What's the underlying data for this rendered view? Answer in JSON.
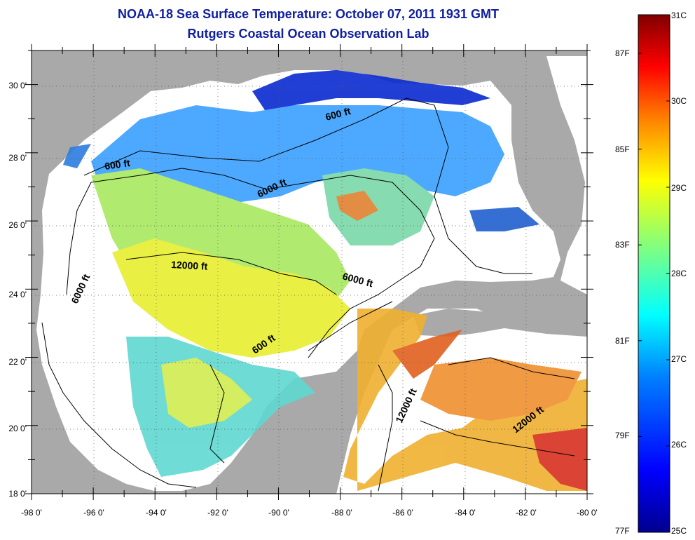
{
  "title": "NOAA-18 Sea Surface Temperature:  October 07, 2011 1931 GMT",
  "subtitle": "Rutgers Coastal Ocean Observation Lab",
  "axes": {
    "lat_labels": [
      "30 0'",
      "28 0'",
      "26 0'",
      "24 0'",
      "22 0'",
      "20 0'",
      "18 0'"
    ],
    "lon_labels": [
      "-98 0'",
      "-96 0'",
      "-94 0'",
      "-92 0'",
      "-90 0'",
      "-88 0'",
      "-86 0'",
      "-84 0'",
      "-82 0'",
      "-80 0'"
    ]
  },
  "colorbar": {
    "fahrenheit_labels": [
      "87F",
      "85F",
      "83F",
      "81F",
      "79F",
      "77F"
    ],
    "celsius_labels": [
      "31C",
      "30C",
      "29C",
      "28C",
      "27C",
      "26C",
      "25C"
    ],
    "range_c": [
      25,
      31
    ],
    "colors": [
      "#00008f",
      "#0000ff",
      "#0080ff",
      "#00ffff",
      "#80ff80",
      "#ffff00",
      "#ff8000",
      "#ff0000",
      "#800000"
    ]
  },
  "contour_labels": [
    "600 ft",
    "600 ft",
    "6000 ft",
    "12000 ft",
    "6000 ft",
    "6000 ft",
    "600 ft",
    "12000 ft",
    "12000 ft"
  ],
  "colors": {
    "land": "#a9a9a9",
    "water_no_data": "#ffffff",
    "title_text": "#1020a0"
  }
}
